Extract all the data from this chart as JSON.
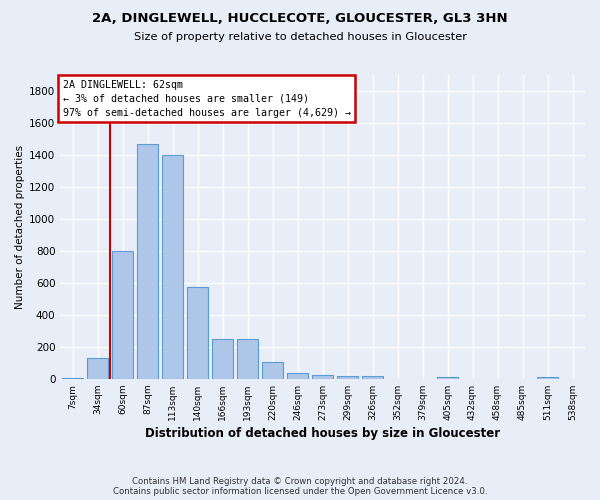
{
  "title1": "2A, DINGLEWELL, HUCCLECOTE, GLOUCESTER, GL3 3HN",
  "title2": "Size of property relative to detached houses in Gloucester",
  "xlabel": "Distribution of detached houses by size in Gloucester",
  "ylabel": "Number of detached properties",
  "categories": [
    "7sqm",
    "34sqm",
    "60sqm",
    "87sqm",
    "113sqm",
    "140sqm",
    "166sqm",
    "193sqm",
    "220sqm",
    "246sqm",
    "273sqm",
    "299sqm",
    "326sqm",
    "352sqm",
    "379sqm",
    "405sqm",
    "432sqm",
    "458sqm",
    "485sqm",
    "511sqm",
    "538sqm"
  ],
  "values": [
    5,
    130,
    800,
    1470,
    1400,
    575,
    248,
    248,
    108,
    35,
    25,
    20,
    15,
    0,
    0,
    13,
    0,
    0,
    0,
    12,
    0
  ],
  "bar_color": "#aec6e8",
  "bar_edge_color": "#5b9bd5",
  "redline_x": 1.5,
  "annotation_line1": "2A DINGLEWELL: 62sqm",
  "annotation_line2": "← 3% of detached houses are smaller (149)",
  "annotation_line3": "97% of semi-detached houses are larger (4,629) →",
  "annotation_box_color": "#ffffff",
  "annotation_box_edge": "#cc0000",
  "ylim": [
    0,
    1900
  ],
  "yticks": [
    0,
    200,
    400,
    600,
    800,
    1000,
    1200,
    1400,
    1600,
    1800
  ],
  "footer1": "Contains HM Land Registry data © Crown copyright and database right 2024.",
  "footer2": "Contains public sector information licensed under the Open Government Licence v3.0.",
  "background_color": "#e8eef8",
  "grid_color": "#ffffff"
}
